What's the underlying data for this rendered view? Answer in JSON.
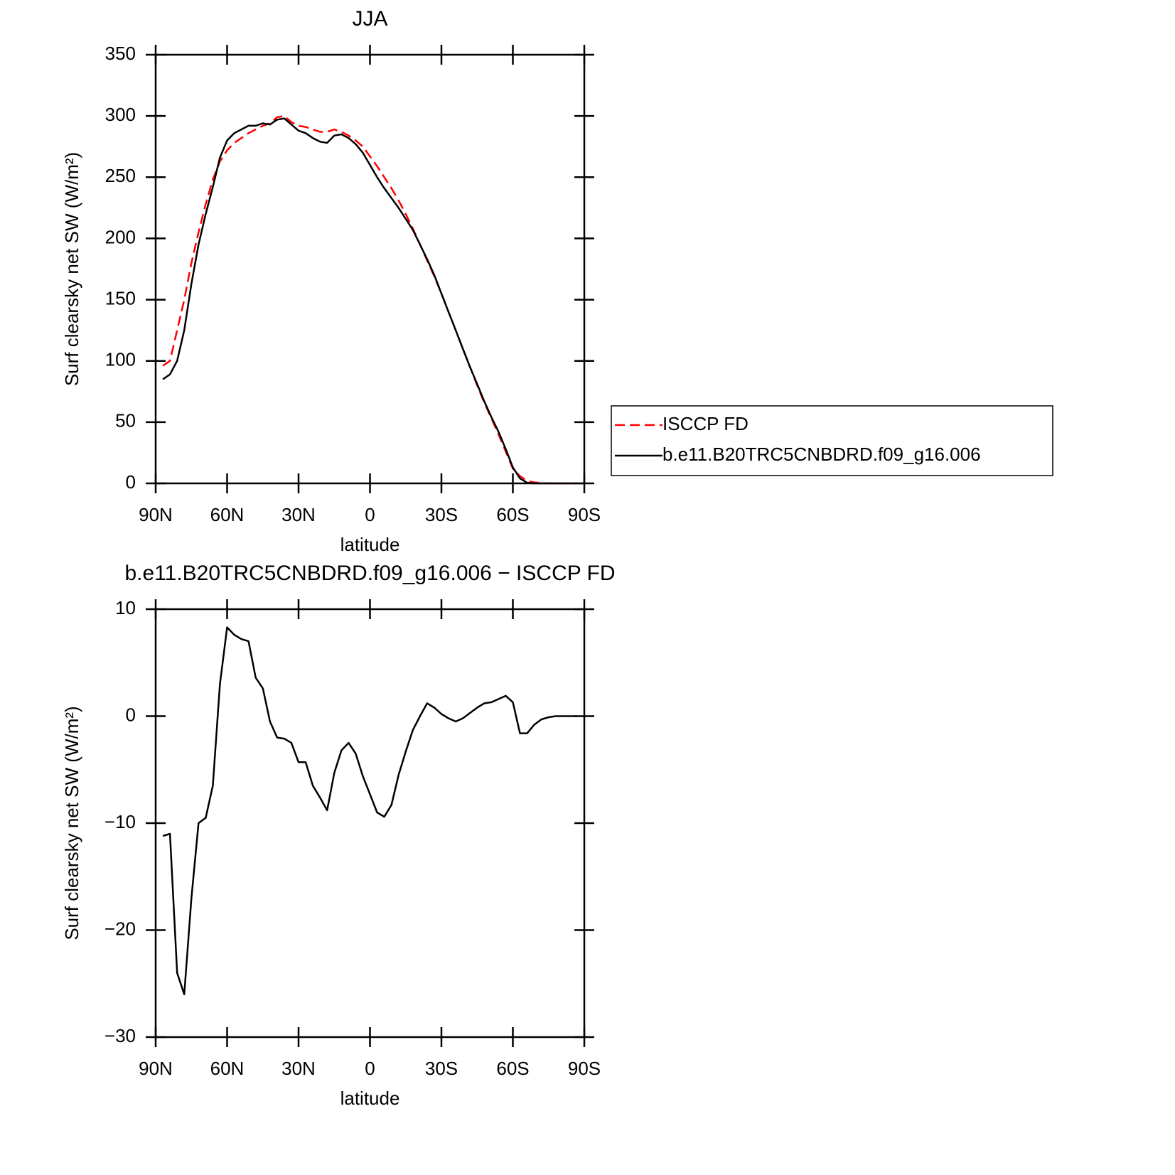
{
  "chart_data": [
    {
      "type": "line",
      "title": "JJA",
      "xlabel": "latitude",
      "ylabel": "Surf clearsky net SW (W/m²)",
      "x": [
        87,
        84,
        81,
        78,
        75,
        72,
        69,
        66,
        63,
        60,
        57,
        54,
        51,
        48,
        45,
        42,
        39,
        36,
        33,
        30,
        27,
        24,
        21,
        18,
        15,
        12,
        9,
        6,
        3,
        0,
        -3,
        -6,
        -9,
        -12,
        -15,
        -18,
        -21,
        -24,
        -27,
        -30,
        -33,
        -36,
        -39,
        -42,
        -45,
        -48,
        -51,
        -54,
        -57,
        -60,
        -63,
        -66,
        -69,
        -72,
        -75,
        -78,
        -81,
        -84,
        -87
      ],
      "series": [
        {
          "name": "ISCCP FD",
          "color": "#ff0000",
          "dash": "dashed",
          "values": [
            96,
            100,
            125,
            150,
            180,
            205,
            228,
            248,
            263,
            272,
            278,
            282,
            286,
            289,
            292,
            294,
            299,
            300,
            295,
            292,
            291,
            289,
            287,
            287,
            289,
            287,
            284,
            280,
            275,
            267,
            259,
            250,
            241,
            231,
            220,
            208,
            195,
            182,
            169,
            155,
            140,
            125,
            110,
            95,
            80,
            66,
            53,
            40,
            26,
            12,
            6,
            2,
            0.8,
            0.3,
            0,
            0,
            0,
            0,
            0
          ]
        },
        {
          "name": "b.e11.B20TRC5CNBDRD.f09_g16.006",
          "color": "#000000",
          "dash": "solid",
          "values": [
            85,
            89,
            100,
            125,
            163,
            195,
            220,
            242,
            266,
            280,
            286,
            289,
            292,
            292,
            294,
            293,
            297,
            298,
            293,
            288,
            286,
            282,
            279,
            278,
            284,
            285,
            282,
            277,
            270,
            260,
            250,
            241,
            233,
            225,
            216,
            207,
            195,
            183,
            170,
            155,
            140,
            125,
            110,
            95,
            81,
            67,
            54,
            42,
            28,
            13,
            4,
            0.5,
            0,
            0,
            0,
            0,
            0,
            0,
            0
          ]
        }
      ],
      "xlim": [
        90,
        -90
      ],
      "xticks": [
        {
          "value": 90,
          "label": "90N"
        },
        {
          "value": 60,
          "label": "60N"
        },
        {
          "value": 30,
          "label": "30N"
        },
        0,
        {
          "value": -30,
          "label": "30S"
        },
        {
          "value": -60,
          "label": "60S"
        },
        {
          "value": -90,
          "label": "90S"
        }
      ],
      "ylim": [
        0,
        350
      ],
      "yticks": [
        0,
        50,
        100,
        150,
        200,
        250,
        300,
        350
      ],
      "legend": "right"
    },
    {
      "type": "line",
      "title": "b.e11.B20TRC5CNBDRD.f09_g16.006 − ISCCP FD",
      "xlabel": "latitude",
      "ylabel": "Surf clearsky net SW (W/m²)",
      "x": [
        87,
        84,
        81,
        78,
        75,
        72,
        69,
        66,
        63,
        60,
        57,
        54,
        51,
        48,
        45,
        42,
        39,
        36,
        33,
        30,
        27,
        24,
        21,
        18,
        15,
        12,
        9,
        6,
        3,
        0,
        -3,
        -6,
        -9,
        -12,
        -15,
        -18,
        -21,
        -24,
        -27,
        -30,
        -33,
        -36,
        -39,
        -42,
        -45,
        -48,
        -51,
        -54,
        -57,
        -60,
        -63,
        -66,
        -69,
        -72,
        -75,
        -78,
        -81,
        -84,
        -87
      ],
      "series": [
        {
          "color": "#000000",
          "dash": "solid",
          "values": [
            -11.2,
            -11,
            -24,
            -26,
            -17,
            -10,
            -9.5,
            -6.5,
            3,
            8.3,
            7.6,
            7.2,
            7,
            3.6,
            2.6,
            -0.5,
            -2,
            -2.1,
            -2.5,
            -4.3,
            -4.3,
            -6.5,
            -7.6,
            -8.8,
            -5.3,
            -3.2,
            -2.5,
            -3.5,
            -5.6,
            -7.3,
            -9,
            -9.4,
            -8.3,
            -5.5,
            -3.3,
            -1.3,
            0,
            1.2,
            0.8,
            0.2,
            -0.2,
            -0.5,
            -0.2,
            0.3,
            0.8,
            1.2,
            1.3,
            1.6,
            1.9,
            1.3,
            -1.6,
            -1.6,
            -0.8,
            -0.3,
            -0.1,
            0,
            0,
            0,
            0
          ]
        }
      ],
      "xlim": [
        90,
        -90
      ],
      "xticks": [
        {
          "value": 90,
          "label": "90N"
        },
        {
          "value": 60,
          "label": "60N"
        },
        {
          "value": 30,
          "label": "30N"
        },
        0,
        {
          "value": -30,
          "label": "30S"
        },
        {
          "value": -60,
          "label": "60S"
        },
        {
          "value": -90,
          "label": "90S"
        }
      ],
      "ylim": [
        -30,
        10
      ],
      "yticks": [
        {
          "value": -30,
          "label": "−30"
        },
        {
          "value": -20,
          "label": "−20"
        },
        {
          "value": -10,
          "label": "−10"
        },
        0,
        10
      ]
    }
  ]
}
